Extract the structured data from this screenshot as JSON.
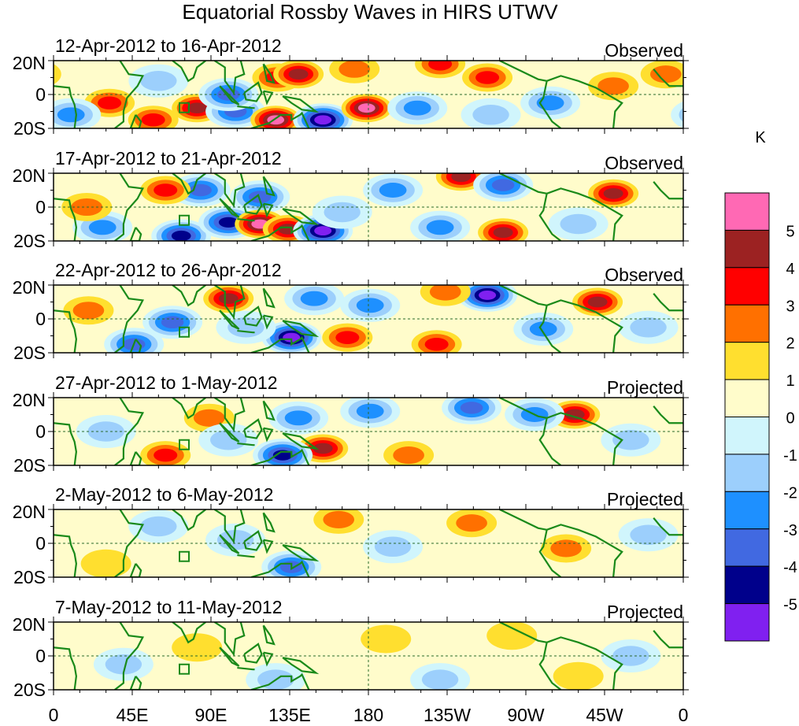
{
  "chart_data": {
    "type": "heatmap",
    "title": "Equatorial Rossby Waves in HIRS UTWV",
    "lat_labels": [
      "20N",
      "0",
      "20S"
    ],
    "lon_labels": [
      "0",
      "45E",
      "90E",
      "135E",
      "180",
      "135W",
      "90W",
      "45W",
      "0"
    ],
    "lat_range": [
      -20,
      20
    ],
    "lon_range": [
      0,
      360
    ],
    "colorbar": {
      "unit": "K",
      "labels": [
        "5",
        "4",
        "3",
        "2",
        "1",
        "0",
        "-1",
        "-2",
        "-3",
        "-4",
        "-5"
      ],
      "colors": [
        "#ff69b4",
        "#9c2222",
        "#ff0000",
        "#ff7000",
        "#ffdf2f",
        "#fffccb",
        "#d0f5fc",
        "#9ccffc",
        "#1e90ff",
        "#4169e1",
        "#00008b",
        "#8020f0"
      ]
    },
    "panels": [
      {
        "date": "12-Apr-2012 to 16-Apr-2012",
        "label": "Observed",
        "anomalies": [
          [
            32,
            -5,
            3
          ],
          [
            82,
            -8,
            4
          ],
          [
            57,
            -15,
            3
          ],
          [
            104,
            -10,
            -3
          ],
          [
            128,
            10,
            3
          ],
          [
            127,
            -15,
            5
          ],
          [
            140,
            12,
            4
          ],
          [
            154,
            -15,
            -5
          ],
          [
            179,
            -8,
            5
          ],
          [
            100,
            0,
            -3
          ],
          [
            221,
            18,
            3
          ],
          [
            248,
            10,
            3
          ],
          [
            208,
            -8,
            -2
          ],
          [
            284,
            -5,
            -2
          ],
          [
            320,
            5,
            2
          ],
          [
            172,
            15,
            2
          ],
          [
            60,
            8,
            -1
          ],
          [
            250,
            -12,
            -1
          ],
          [
            350,
            12,
            2
          ],
          [
            10,
            -12,
            -2
          ]
        ]
      },
      {
        "date": "17-Apr-2012 to 21-Apr-2012",
        "label": "Observed",
        "anomalies": [
          [
            84,
            10,
            -3
          ],
          [
            64,
            10,
            3
          ],
          [
            118,
            6,
            -3
          ],
          [
            73,
            -17,
            -4
          ],
          [
            100,
            -9,
            -4
          ],
          [
            118,
            -10,
            5
          ],
          [
            134,
            -13,
            4
          ],
          [
            154,
            -14,
            -5
          ],
          [
            233,
            18,
            4
          ],
          [
            257,
            13,
            -3
          ],
          [
            320,
            8,
            4
          ],
          [
            257,
            -15,
            4
          ],
          [
            194,
            10,
            -2
          ],
          [
            28,
            -12,
            -2
          ],
          [
            221,
            -12,
            -2
          ],
          [
            19,
            0,
            2
          ],
          [
            165,
            -3,
            -1
          ],
          [
            300,
            -10,
            -1
          ]
        ]
      },
      {
        "date": "22-Apr-2012 to 26-Apr-2012",
        "label": "Observed",
        "anomalies": [
          [
            100,
            12,
            4
          ],
          [
            68,
            -2,
            -3
          ],
          [
            136,
            -11,
            -5
          ],
          [
            168,
            -11,
            3
          ],
          [
            248,
            14,
            -5
          ],
          [
            224,
            16,
            2
          ],
          [
            311,
            10,
            4
          ],
          [
            280,
            -6,
            -2
          ],
          [
            46,
            -15,
            -3
          ],
          [
            181,
            8,
            -2
          ],
          [
            219,
            -15,
            3
          ],
          [
            149,
            12,
            -2
          ],
          [
            20,
            5,
            2
          ],
          [
            340,
            -5,
            -1
          ],
          [
            110,
            -5,
            -1
          ]
        ]
      },
      {
        "date": "27-Apr-2012 to 1-May-2012",
        "label": "Projected",
        "anomalies": [
          [
            298,
            10,
            4
          ],
          [
            154,
            -10,
            4
          ],
          [
            131,
            -14,
            -4
          ],
          [
            89,
            8,
            2
          ],
          [
            239,
            14,
            -3
          ],
          [
            275,
            10,
            -2
          ],
          [
            203,
            -14,
            2
          ],
          [
            64,
            -14,
            3
          ],
          [
            140,
            8,
            -2
          ],
          [
            181,
            12,
            -2
          ],
          [
            30,
            0,
            -1
          ],
          [
            330,
            -5,
            -1
          ],
          [
            100,
            -5,
            -1
          ]
        ]
      },
      {
        "date": "2-May-2012 to 6-May-2012",
        "label": "Projected",
        "anomalies": [
          [
            239,
            12,
            2
          ],
          [
            136,
            -14,
            -3
          ],
          [
            163,
            14,
            2
          ],
          [
            293,
            -3,
            2
          ],
          [
            104,
            2,
            -1
          ],
          [
            194,
            -2,
            -1
          ],
          [
            30,
            -12,
            1
          ],
          [
            340,
            5,
            -1
          ],
          [
            60,
            10,
            -1
          ]
        ]
      },
      {
        "date": "7-May-2012 to 11-May-2012",
        "label": "Projected",
        "anomalies": [
          [
            82,
            5,
            0.5
          ],
          [
            190,
            10,
            1
          ],
          [
            262,
            12,
            1
          ],
          [
            127,
            -14,
            -1
          ],
          [
            221,
            -14,
            -1
          ],
          [
            40,
            -5,
            -1
          ],
          [
            330,
            0,
            -1
          ],
          [
            300,
            -12,
            1
          ]
        ]
      }
    ]
  }
}
